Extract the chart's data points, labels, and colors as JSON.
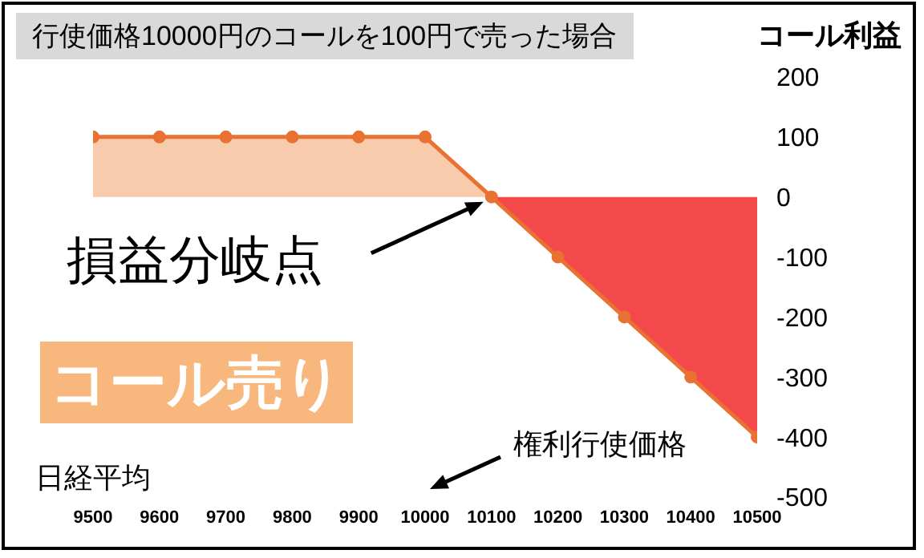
{
  "chart_data": {
    "type": "line",
    "title": "行使価格10000円のコールを100円で売った場合",
    "xlabel": "日経平均",
    "ylabel": "コール利益",
    "x": [
      9500,
      9600,
      9700,
      9800,
      9900,
      10000,
      10100,
      10200,
      10300,
      10400,
      10500
    ],
    "series": [
      {
        "type": "area",
        "color": "#f8cbad",
        "values": [
          100,
          100,
          100,
          100,
          100,
          100,
          0,
          null,
          null,
          null,
          null
        ]
      },
      {
        "type": "area",
        "color": "#f4494a",
        "values": [
          null,
          null,
          null,
          null,
          null,
          null,
          0,
          -100,
          -200,
          -300,
          -400
        ]
      },
      {
        "color": "#e97132",
        "marker": "circle",
        "values": [
          100,
          100,
          100,
          100,
          100,
          100,
          0,
          -100,
          -200,
          -300,
          -400
        ]
      }
    ],
    "xlim": [
      9500,
      10500
    ],
    "xticks": [
      9500,
      9600,
      9700,
      9800,
      9900,
      10000,
      10100,
      10200,
      10300,
      10400,
      10500
    ],
    "ylim": [
      -500,
      200
    ],
    "yticks": [
      -500,
      -400,
      -300,
      -200,
      -100,
      0,
      100,
      200
    ],
    "annotations": [
      "損益分岐点",
      "コール売り",
      "権利行使価格"
    ]
  }
}
